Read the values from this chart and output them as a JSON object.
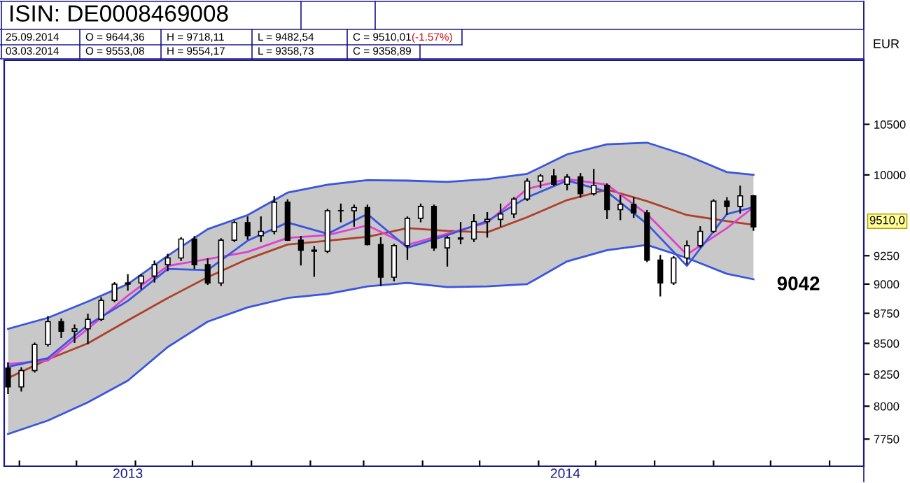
{
  "chart_data": {
    "type": "candlestick",
    "title": "ISIN: DE0008469008",
    "ylabel": "EUR",
    "color": "#000000",
    "x": [
      "2013-08-26",
      "2013-09-02",
      "2013-09-09",
      "2013-09-16",
      "2013-09-23",
      "2013-09-30",
      "2013-10-07",
      "2013-10-14",
      "2013-10-21",
      "2013-10-28",
      "2013-11-04",
      "2013-11-11",
      "2013-11-18",
      "2013-11-25",
      "2013-12-02",
      "2013-12-09",
      "2013-12-16",
      "2013-12-23",
      "2013-12-30",
      "2014-01-06",
      "2014-01-13",
      "2014-01-20",
      "2014-01-27",
      "2014-02-03",
      "2014-02-10",
      "2014-02-17",
      "2014-02-24",
      "2014-03-03",
      "2014-03-10",
      "2014-03-17",
      "2014-03-24",
      "2014-03-31",
      "2014-04-07",
      "2014-04-14",
      "2014-04-21",
      "2014-04-28",
      "2014-05-05",
      "2014-05-12",
      "2014-05-19",
      "2014-05-26",
      "2014-06-02",
      "2014-06-09",
      "2014-06-16",
      "2014-06-23",
      "2014-06-30",
      "2014-07-07",
      "2014-07-14",
      "2014-07-21",
      "2014-07-28",
      "2014-08-04",
      "2014-08-11",
      "2014-08-18",
      "2014-08-25",
      "2014-09-01",
      "2014-09-08",
      "2014-09-15",
      "2014-09-22"
    ],
    "ohlc": [
      [
        8300,
        8340,
        8100,
        8150
      ],
      [
        8150,
        8300,
        8120,
        8280
      ],
      [
        8280,
        8500,
        8270,
        8490
      ],
      [
        8490,
        8720,
        8480,
        8680
      ],
      [
        8680,
        8700,
        8550,
        8600
      ],
      [
        8600,
        8650,
        8510,
        8620
      ],
      [
        8620,
        8740,
        8500,
        8700
      ],
      [
        8700,
        8880,
        8690,
        8860
      ],
      [
        8860,
        9010,
        8850,
        9000
      ],
      [
        9000,
        9080,
        8950,
        9010
      ],
      [
        9010,
        9080,
        8960,
        9070
      ],
      [
        9070,
        9200,
        9020,
        9170
      ],
      [
        9170,
        9260,
        9120,
        9230
      ],
      [
        9230,
        9410,
        9210,
        9400
      ],
      [
        9400,
        9420,
        9140,
        9170
      ],
      [
        9170,
        9220,
        9000,
        9010
      ],
      [
        9010,
        9400,
        8990,
        9390
      ],
      [
        9390,
        9560,
        9380,
        9550
      ],
      [
        9550,
        9600,
        9400,
        9430
      ],
      [
        9430,
        9600,
        9380,
        9470
      ],
      [
        9470,
        9790,
        9450,
        9740
      ],
      [
        9740,
        9760,
        9390,
        9390
      ],
      [
        9390,
        9420,
        9170,
        9300
      ],
      [
        9300,
        9330,
        9070,
        9290
      ],
      [
        9290,
        9670,
        9280,
        9660
      ],
      [
        9660,
        9720,
        9560,
        9660
      ],
      [
        9660,
        9710,
        9520,
        9690
      ],
      [
        9690,
        9710,
        9350,
        9350
      ],
      [
        9350,
        9410,
        8990,
        9060
      ],
      [
        9060,
        9350,
        9030,
        9340
      ],
      [
        9340,
        9600,
        9220,
        9590
      ],
      [
        9590,
        9720,
        9560,
        9700
      ],
      [
        9700,
        9710,
        9300,
        9320
      ],
      [
        9320,
        9420,
        9160,
        9410
      ],
      [
        9410,
        9550,
        9360,
        9400
      ],
      [
        9400,
        9620,
        9380,
        9560
      ],
      [
        9560,
        9640,
        9420,
        9580
      ],
      [
        9580,
        9720,
        9520,
        9630
      ],
      [
        9630,
        9780,
        9600,
        9770
      ],
      [
        9770,
        9960,
        9760,
        9940
      ],
      [
        9940,
        10000,
        9880,
        9990
      ],
      [
        9990,
        10050,
        9900,
        9910
      ],
      [
        9910,
        10000,
        9860,
        9980
      ],
      [
        9980,
        10010,
        9790,
        9820
      ],
      [
        9820,
        10050,
        9810,
        9900
      ],
      [
        9900,
        9910,
        9590,
        9670
      ],
      [
        9670,
        9800,
        9580,
        9720
      ],
      [
        9720,
        9780,
        9600,
        9640
      ],
      [
        9640,
        9660,
        9200,
        9210
      ],
      [
        9210,
        9250,
        8900,
        9010
      ],
      [
        9010,
        9240,
        9000,
        9230
      ],
      [
        9230,
        9380,
        9180,
        9340
      ],
      [
        9340,
        9510,
        9330,
        9470
      ],
      [
        9470,
        9760,
        9460,
        9750
      ],
      [
        9750,
        9780,
        9630,
        9700
      ],
      [
        9700,
        9890,
        9640,
        9800
      ],
      [
        9800,
        9800,
        9482,
        9510
      ]
    ],
    "series": [
      {
        "type": "line",
        "color": "#3a55e0",
        "x": [
          "2013-08-26",
          "2013-09-16",
          "2013-10-07",
          "2013-10-28",
          "2013-11-18",
          "2013-12-09",
          "2013-12-30",
          "2014-01-20",
          "2014-02-10",
          "2014-03-03",
          "2014-03-24",
          "2014-04-14",
          "2014-05-05",
          "2014-05-26",
          "2014-06-16",
          "2014-07-07",
          "2014-07-28",
          "2014-08-18",
          "2014-09-08",
          "2014-09-22"
        ],
        "values": [
          8619,
          8712,
          8850,
          9000,
          9250,
          9490,
          9620,
          9830,
          9906,
          9950,
          9945,
          9933,
          9960,
          10010,
          10200,
          10300,
          10316,
          10190,
          10027,
          10000
        ]
      },
      {
        "type": "line",
        "color": "#3a55e0",
        "x": [
          "2013-08-26",
          "2013-09-16",
          "2013-10-07",
          "2013-10-28",
          "2013-11-18",
          "2013-12-09",
          "2013-12-30",
          "2014-01-20",
          "2014-02-10",
          "2014-03-03",
          "2014-03-24",
          "2014-04-14",
          "2014-05-05",
          "2014-05-26",
          "2014-06-16",
          "2014-07-07",
          "2014-07-28",
          "2014-08-18",
          "2014-09-08",
          "2014-09-22"
        ],
        "values": [
          7788,
          7890,
          8030,
          8200,
          8470,
          8680,
          8800,
          8880,
          8915,
          8980,
          9011,
          8974,
          8980,
          9000,
          9200,
          9300,
          9347,
          9230,
          9090,
          9042
        ]
      },
      {
        "type": "line",
        "color": "#b0402a",
        "x": [
          "2013-08-26",
          "2013-09-16",
          "2013-10-07",
          "2013-10-28",
          "2013-11-18",
          "2013-12-09",
          "2013-12-30",
          "2014-01-20",
          "2014-02-10",
          "2014-03-03",
          "2014-03-24",
          "2014-04-14",
          "2014-05-05",
          "2014-05-26",
          "2014-06-16",
          "2014-07-07",
          "2014-07-28",
          "2014-08-18",
          "2014-09-08",
          "2014-09-22"
        ],
        "values": [
          8220,
          8370,
          8500,
          8690,
          8880,
          9060,
          9220,
          9350,
          9385,
          9420,
          9500,
          9474,
          9461,
          9600,
          9760,
          9860,
          9750,
          9620,
          9564,
          9530
        ],
        "upper": [
          8619,
          8712,
          8850,
          9000,
          9250,
          9490,
          9620,
          9830,
          9906,
          9950,
          9945,
          9933,
          9960,
          10010,
          10200,
          10300,
          10316,
          10190,
          10027,
          10000
        ],
        "lower": [
          7788,
          7890,
          8030,
          8200,
          8470,
          8680,
          8800,
          8880,
          8915,
          8980,
          9011,
          8974,
          8980,
          9000,
          9200,
          9300,
          9347,
          9230,
          9090,
          9042
        ]
      },
      {
        "type": "line",
        "color": "#e040d0",
        "x": [
          "2013-08-26",
          "2013-09-16",
          "2013-10-07",
          "2013-10-28",
          "2013-11-18",
          "2013-12-09",
          "2013-12-30",
          "2014-01-20",
          "2014-02-10",
          "2014-03-03",
          "2014-03-24",
          "2014-04-14",
          "2014-05-05",
          "2014-05-26",
          "2014-06-16",
          "2014-07-07",
          "2014-07-28",
          "2014-08-18",
          "2014-09-08",
          "2014-09-22"
        ],
        "values": [
          8333,
          8360,
          8620,
          8900,
          9160,
          9220,
          9284,
          9410,
          9435,
          9525,
          9347,
          9448,
          9551,
          9866,
          9960,
          9906,
          9629,
          9260,
          9500,
          9694
        ]
      },
      {
        "type": "line",
        "color": "#3a55e0",
        "x": [
          "2013-08-26",
          "2013-09-16",
          "2013-10-07",
          "2013-10-28",
          "2013-11-18",
          "2013-12-09",
          "2013-12-30",
          "2014-01-20",
          "2014-02-10",
          "2014-03-03",
          "2014-03-24",
          "2014-04-14",
          "2014-05-05",
          "2014-05-26",
          "2014-06-16",
          "2014-07-07",
          "2014-07-28",
          "2014-08-18",
          "2014-09-08",
          "2014-09-22"
        ],
        "values": [
          8310,
          8380,
          8652,
          8855,
          9133,
          9122,
          9385,
          9551,
          9448,
          9629,
          9322,
          9435,
          9564,
          9786,
          9946,
          9839,
          9538,
          9160,
          9629,
          9694
        ]
      }
    ],
    "log": "y",
    "xlim": [
      "2013-08-24",
      "2014-11-19"
    ],
    "ylim": [
      7550,
      11170
    ],
    "yticks": [
      7750,
      8000,
      8250,
      8500,
      8750,
      9000,
      9250,
      10000,
      10500
    ],
    "xticks": [
      {
        "value": "2013-09-01",
        "label": null
      },
      {
        "value": "2013-10-01",
        "label": null
      },
      {
        "value": "2013-11-01",
        "label": null
      },
      {
        "value": "2013-12-01",
        "label": null
      },
      {
        "value": "2014-01-01",
        "label": null
      },
      {
        "value": "2014-02-01",
        "label": null
      },
      {
        "value": "2014-03-01",
        "label": null
      },
      {
        "value": "2014-04-01",
        "label": null
      },
      {
        "value": "2014-05-01",
        "label": null
      },
      {
        "value": "2014-06-01",
        "label": null
      },
      {
        "value": "2014-07-01",
        "label": null
      },
      {
        "value": "2014-08-01",
        "label": null
      },
      {
        "value": "2014-09-01",
        "label": null
      },
      {
        "value": "2014-10-01",
        "label": null
      },
      {
        "value": "2014-11-01",
        "label": null
      },
      {
        "value": "2013-10-28",
        "label": "2013"
      },
      {
        "value": "2014-06-15",
        "label": "2014"
      }
    ],
    "annotations": [
      "25.09.2014",
      "O = 9644,36",
      "H = 9718,11",
      "L = 9482,54",
      "C = 9510,01",
      "(-1.57%)",
      "03.03.2014",
      "O = 9553,08",
      "H = 9554,17",
      "L = 9358,73",
      "C = 9358,89",
      "9510,0",
      {
        "text": "9042",
        "x": "2014-09-22",
        "y": 9042
      }
    ]
  }
}
